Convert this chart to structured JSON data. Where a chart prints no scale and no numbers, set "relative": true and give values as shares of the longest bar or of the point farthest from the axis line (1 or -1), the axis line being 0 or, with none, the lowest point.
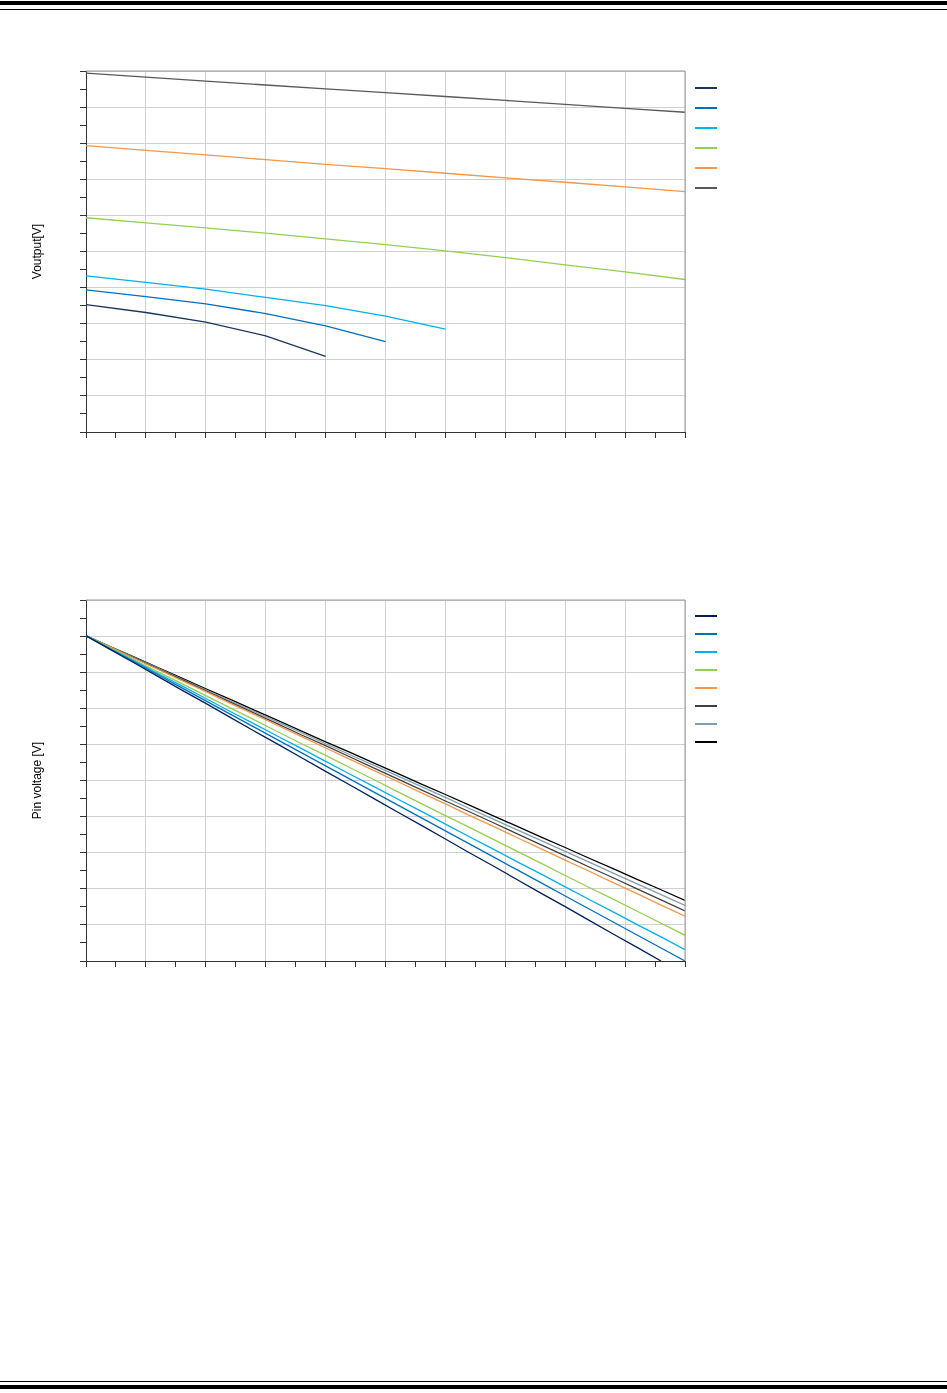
{
  "chart_data": [
    {
      "type": "line",
      "ylabel": "Voutput[V]",
      "relative": true,
      "grid": true,
      "categories": [
        null,
        null,
        null,
        null,
        null,
        null,
        null,
        null,
        null,
        null,
        null
      ],
      "series": [
        {
          "color": "#17375e",
          "values": [
            0.355,
            0.333,
            0.306,
            0.268,
            0.211,
            null,
            null,
            null,
            null,
            null,
            null
          ]
        },
        {
          "color": "#0070c0",
          "values": [
            0.396,
            0.377,
            0.357,
            0.33,
            0.296,
            0.252,
            null,
            null,
            null,
            null,
            null
          ]
        },
        {
          "color": "#00b0f0",
          "values": [
            0.435,
            0.417,
            0.398,
            0.375,
            0.352,
            0.323,
            0.287,
            null,
            null,
            null,
            null
          ]
        },
        {
          "color": "#92d050",
          "values": [
            0.597,
            0.583,
            0.569,
            0.554,
            0.538,
            0.522,
            0.505,
            0.486,
            0.466,
            0.446,
            0.425
          ]
        },
        {
          "color": "#f79646",
          "values": [
            0.798,
            0.785,
            0.772,
            0.759,
            0.746,
            0.734,
            0.721,
            0.708,
            0.696,
            0.683,
            0.67
          ]
        },
        {
          "color": "#595959",
          "values": [
            1.0,
            0.989,
            0.978,
            0.967,
            0.956,
            0.946,
            0.935,
            0.924,
            0.913,
            0.902,
            0.891
          ]
        }
      ]
    },
    {
      "type": "line",
      "ylabel": "Pin voltage [V]",
      "relative": true,
      "grid": true,
      "categories": [
        null,
        null,
        null,
        null,
        null,
        null,
        null,
        null,
        null,
        null,
        null,
        null,
        null,
        null,
        null,
        null,
        null,
        null,
        null,
        null,
        null,
        null,
        null,
        null,
        null,
        null
      ],
      "series": [
        {
          "color": "#002060",
          "values": [
            1.0,
            0.958,
            0.917,
            0.875,
            0.833,
            0.792,
            0.75,
            0.708,
            0.667,
            0.625,
            0.583,
            0.542,
            0.5,
            0.458,
            0.417,
            0.375,
            0.333,
            0.292,
            0.25,
            0.208,
            0.167,
            0.125,
            0.083,
            0.042,
            0.0,
            null
          ]
        },
        {
          "color": "#0070c0",
          "values": [
            1.0,
            0.96,
            0.92,
            0.88,
            0.84,
            0.8,
            0.76,
            0.72,
            0.68,
            0.64,
            0.6,
            0.56,
            0.52,
            0.48,
            0.44,
            0.4,
            0.36,
            0.32,
            0.28,
            0.24,
            0.2,
            0.16,
            0.12,
            0.08,
            0.04,
            0.0
          ]
        },
        {
          "color": "#00b0f0",
          "values": [
            1.0,
            0.961,
            0.923,
            0.884,
            0.846,
            0.807,
            0.768,
            0.73,
            0.691,
            0.653,
            0.614,
            0.575,
            0.537,
            0.498,
            0.46,
            0.421,
            0.382,
            0.344,
            0.305,
            0.267,
            0.228,
            0.189,
            0.151,
            0.112,
            0.074,
            0.035
          ]
        },
        {
          "color": "#92d050",
          "values": [
            1.0,
            0.963,
            0.926,
            0.889,
            0.853,
            0.816,
            0.779,
            0.742,
            0.705,
            0.668,
            0.632,
            0.595,
            0.558,
            0.521,
            0.484,
            0.447,
            0.411,
            0.374,
            0.337,
            0.3,
            0.263,
            0.226,
            0.19,
            0.153,
            0.116,
            0.079
          ]
        },
        {
          "color": "#f79646",
          "values": [
            1.0,
            0.966,
            0.931,
            0.897,
            0.862,
            0.828,
            0.793,
            0.759,
            0.724,
            0.69,
            0.655,
            0.621,
            0.586,
            0.552,
            0.517,
            0.483,
            0.448,
            0.414,
            0.379,
            0.345,
            0.31,
            0.276,
            0.241,
            0.207,
            0.172,
            0.138
          ]
        },
        {
          "color": "#404040",
          "values": [
            1.0,
            0.966,
            0.932,
            0.898,
            0.865,
            0.831,
            0.797,
            0.763,
            0.729,
            0.695,
            0.662,
            0.628,
            0.594,
            0.56,
            0.526,
            0.492,
            0.459,
            0.425,
            0.391,
            0.357,
            0.323,
            0.289,
            0.256,
            0.222,
            0.188,
            0.154
          ]
        },
        {
          "color": "#7f9fb0",
          "values": [
            1.0,
            0.967,
            0.934,
            0.901,
            0.867,
            0.834,
            0.801,
            0.768,
            0.735,
            0.702,
            0.668,
            0.635,
            0.602,
            0.569,
            0.536,
            0.503,
            0.469,
            0.436,
            0.403,
            0.37,
            0.337,
            0.304,
            0.27,
            0.237,
            0.204,
            0.171
          ]
        },
        {
          "color": "#000000",
          "values": [
            1.0,
            0.967,
            0.935,
            0.902,
            0.87,
            0.837,
            0.805,
            0.772,
            0.74,
            0.707,
            0.674,
            0.642,
            0.609,
            0.577,
            0.544,
            0.512,
            0.479,
            0.446,
            0.414,
            0.381,
            0.349,
            0.316,
            0.284,
            0.251,
            0.219,
            0.186
          ]
        }
      ]
    }
  ]
}
